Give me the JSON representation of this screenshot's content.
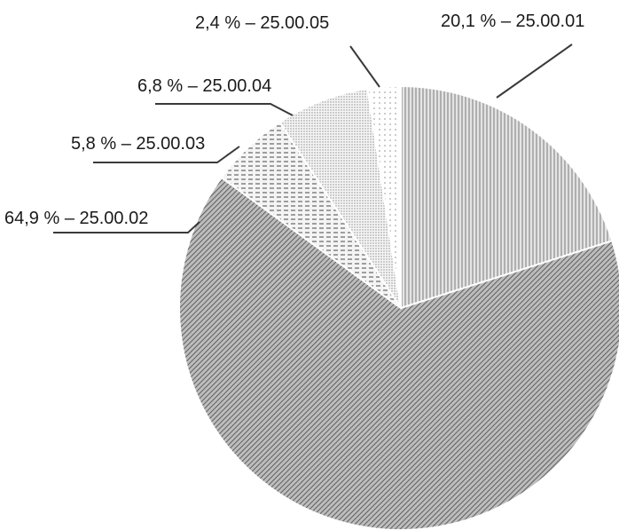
{
  "chart_data": {
    "type": "pie",
    "title": "",
    "legend": "none",
    "slices": [
      {
        "code": "25.00.01",
        "value": 20.1,
        "label": "20,1 % – 25.00.01",
        "pattern": "vertical-lines",
        "color": "#cfcfcf"
      },
      {
        "code": "25.00.02",
        "value": 64.9,
        "label": "64,9 % – 25.00.02",
        "pattern": "diagonal-hatch",
        "color": "#9a9a9a"
      },
      {
        "code": "25.00.03",
        "value": 5.8,
        "label": "5,8 % – 25.00.03",
        "pattern": "dashes",
        "color": "#d6d6d6"
      },
      {
        "code": "25.00.04",
        "value": 6.8,
        "label": "6,8 % – 25.00.04",
        "pattern": "fine-dots",
        "color": "#e6e6e6"
      },
      {
        "code": "25.00.05",
        "value": 2.4,
        "label": "2,4 % – 25.00.05",
        "pattern": "sparse-dots",
        "color": "#f0f0f0"
      }
    ]
  }
}
